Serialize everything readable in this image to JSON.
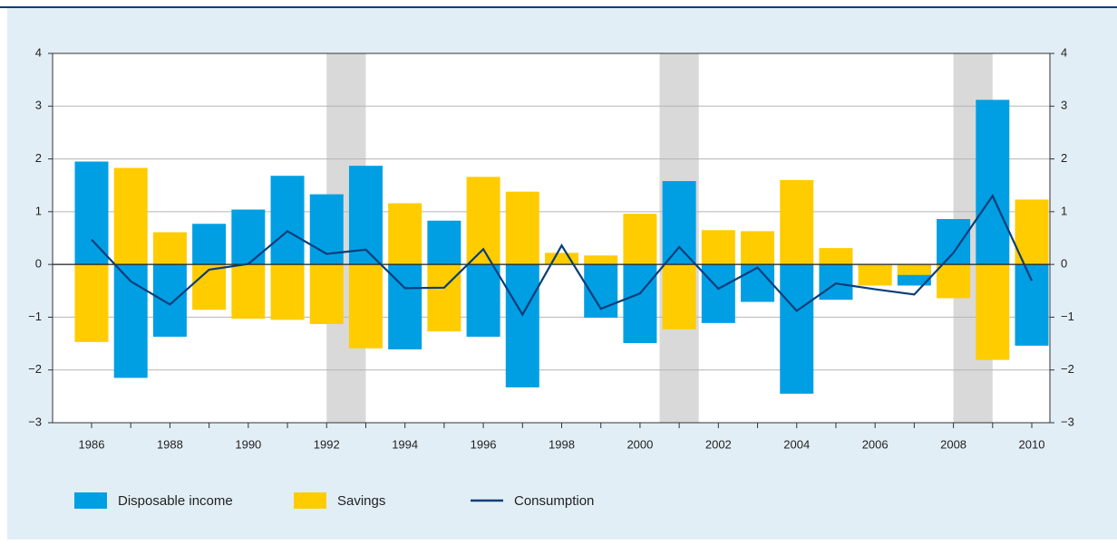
{
  "chart_data": {
    "type": "bar",
    "categories": [
      "1986",
      null,
      "1988",
      null,
      "1990",
      null,
      "1992",
      null,
      "1994",
      null,
      "1996",
      null,
      "1998",
      null,
      "2000",
      null,
      "2002",
      null,
      "2004",
      null,
      "2006",
      null,
      "2008",
      null,
      "2010"
    ],
    "series": [
      {
        "name": "Disposable income",
        "color": "#009fe3",
        "kind": "bar",
        "values": [
          1.95,
          -2.15,
          -1.37,
          0.77,
          1.04,
          1.68,
          1.33,
          1.87,
          -1.61,
          0.83,
          -1.37,
          -2.33,
          0.14,
          -1.01,
          -1.49,
          1.58,
          -1.11,
          -0.71,
          -2.45,
          -0.67,
          -0.07,
          -0.4,
          0.86,
          3.12,
          -1.54
        ]
      },
      {
        "name": "Savings",
        "color": "#ffcc00",
        "kind": "bar",
        "values": [
          -1.47,
          1.83,
          0.61,
          -0.86,
          -1.03,
          -1.05,
          -1.13,
          -1.59,
          1.16,
          -1.27,
          1.66,
          1.38,
          0.22,
          0.17,
          0.96,
          -1.23,
          0.65,
          0.63,
          1.6,
          0.31,
          -0.4,
          -0.2,
          -0.64,
          -1.81,
          1.23
        ]
      },
      {
        "name": "Consumption",
        "color": "#0a3d7a",
        "kind": "line",
        "values": [
          0.47,
          -0.32,
          -0.76,
          -0.1,
          0.01,
          0.63,
          0.2,
          0.28,
          -0.45,
          -0.44,
          0.29,
          -0.95,
          0.36,
          -0.84,
          -0.55,
          0.33,
          -0.46,
          -0.06,
          -0.88,
          -0.36,
          -0.47,
          -0.57,
          0.22,
          1.3,
          -0.31
        ]
      }
    ],
    "recessions": [
      [
        6,
        7
      ],
      [
        14.5,
        15.5
      ],
      [
        22,
        23
      ]
    ],
    "ylim": [
      -3,
      4
    ],
    "yticks": [
      {
        "value": -3,
        "label": "−3"
      },
      {
        "value": -2,
        "label": "−2"
      },
      {
        "value": -1,
        "label": "−1"
      },
      0,
      1,
      2,
      3,
      4
    ],
    "y2lim": [
      -3,
      4
    ],
    "y2ticks": [
      {
        "value": -3,
        "label": "−3"
      },
      {
        "value": -2,
        "label": "−2"
      },
      {
        "value": -1,
        "label": "−1"
      },
      0,
      1,
      2,
      3,
      4
    ],
    "grid": true
  }
}
